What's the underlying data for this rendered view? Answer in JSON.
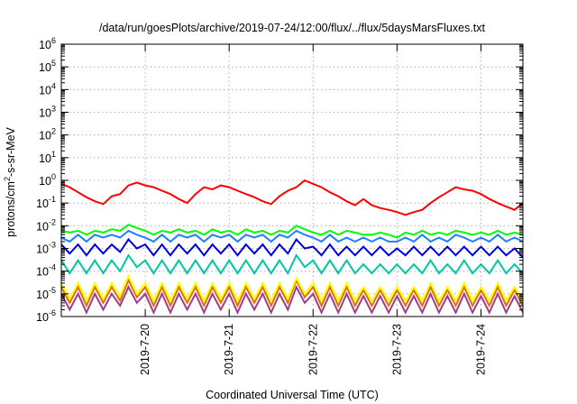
{
  "chart_data": {
    "type": "line",
    "title": "/data/run/goesPlots/archive/2019-07-24/12:00/flux/../flux/5daysMarsFluxes.txt",
    "xlabel": "Coordinated Universal Time (UTC)",
    "ylabel": {
      "prefix": "protons/cm",
      "sup": "2",
      "suffix": "-s-sr-MeV"
    },
    "yscale": "log",
    "ylim": [
      1e-06,
      1000000.0
    ],
    "xlim": [
      0,
      5.5
    ],
    "grid": true,
    "y_ticks": [
      {
        "base": "10",
        "exp": "-6",
        "value": 1e-06
      },
      {
        "base": "10",
        "exp": "-5",
        "value": 1e-05
      },
      {
        "base": "10",
        "exp": "-4",
        "value": 0.0001
      },
      {
        "base": "10",
        "exp": "-3",
        "value": 0.001
      },
      {
        "base": "10",
        "exp": "-2",
        "value": 0.01
      },
      {
        "base": "10",
        "exp": "-1",
        "value": 0.1
      },
      {
        "base": "10",
        "exp": "0",
        "value": 1
      },
      {
        "base": "10",
        "exp": "1",
        "value": 10.0
      },
      {
        "base": "10",
        "exp": "2",
        "value": 100.0
      },
      {
        "base": "10",
        "exp": "3",
        "value": 1000.0
      },
      {
        "base": "10",
        "exp": "4",
        "value": 10000.0
      },
      {
        "base": "10",
        "exp": "5",
        "value": 100000.0
      },
      {
        "base": "10",
        "exp": "6",
        "value": 1000000.0
      }
    ],
    "x_ticks": [
      {
        "label": "2019-7-20",
        "value": 1
      },
      {
        "label": "2019-7-21",
        "value": 2
      },
      {
        "label": "2019-7-22",
        "value": 3
      },
      {
        "label": "2019-7-23",
        "value": 4
      },
      {
        "label": "2019-7-24",
        "value": 5
      }
    ],
    "series": [
      {
        "color": "#ff0000",
        "x": [
          0,
          0.1,
          0.2,
          0.3,
          0.4,
          0.5,
          0.6,
          0.7,
          0.8,
          0.9,
          1.0,
          1.1,
          1.2,
          1.3,
          1.4,
          1.5,
          1.6,
          1.7,
          1.8,
          1.9,
          2.0,
          2.1,
          2.2,
          2.3,
          2.4,
          2.5,
          2.6,
          2.7,
          2.8,
          2.9,
          3.0,
          3.1,
          3.2,
          3.3,
          3.4,
          3.5,
          3.6,
          3.7,
          3.8,
          3.9,
          4.0,
          4.1,
          4.2,
          4.3,
          4.4,
          4.5,
          4.6,
          4.7,
          4.8,
          4.9,
          5.0,
          5.1,
          5.2,
          5.3,
          5.4,
          5.5
        ],
        "values": [
          0.7,
          0.5,
          0.3,
          0.18,
          0.12,
          0.09,
          0.2,
          0.25,
          0.6,
          0.8,
          0.6,
          0.5,
          0.35,
          0.25,
          0.15,
          0.1,
          0.25,
          0.5,
          0.4,
          0.6,
          0.5,
          0.35,
          0.25,
          0.18,
          0.12,
          0.09,
          0.2,
          0.35,
          0.5,
          1.0,
          0.7,
          0.5,
          0.3,
          0.2,
          0.12,
          0.08,
          0.15,
          0.08,
          0.06,
          0.05,
          0.04,
          0.03,
          0.04,
          0.05,
          0.1,
          0.18,
          0.3,
          0.5,
          0.4,
          0.35,
          0.25,
          0.15,
          0.1,
          0.07,
          0.05,
          0.1
        ]
      },
      {
        "color": "#00ff00",
        "x": [
          0,
          0.1,
          0.2,
          0.3,
          0.4,
          0.5,
          0.6,
          0.7,
          0.8,
          0.9,
          1.0,
          1.1,
          1.2,
          1.3,
          1.4,
          1.5,
          1.6,
          1.7,
          1.8,
          1.9,
          2.0,
          2.1,
          2.2,
          2.3,
          2.4,
          2.5,
          2.6,
          2.7,
          2.8,
          2.9,
          3.0,
          3.1,
          3.2,
          3.3,
          3.4,
          3.5,
          3.6,
          3.7,
          3.8,
          3.9,
          4.0,
          4.1,
          4.2,
          4.3,
          4.4,
          4.5,
          4.6,
          4.7,
          4.8,
          4.9,
          5.0,
          5.1,
          5.2,
          5.3,
          5.4,
          5.5
        ],
        "values": [
          0.006,
          0.005,
          0.006,
          0.004,
          0.006,
          0.005,
          0.007,
          0.006,
          0.011,
          0.008,
          0.006,
          0.004,
          0.006,
          0.005,
          0.007,
          0.005,
          0.006,
          0.004,
          0.007,
          0.005,
          0.006,
          0.004,
          0.007,
          0.005,
          0.006,
          0.004,
          0.006,
          0.005,
          0.01,
          0.007,
          0.005,
          0.004,
          0.006,
          0.004,
          0.006,
          0.005,
          0.004,
          0.004,
          0.005,
          0.004,
          0.003,
          0.005,
          0.004,
          0.006,
          0.004,
          0.005,
          0.004,
          0.006,
          0.005,
          0.004,
          0.005,
          0.004,
          0.006,
          0.004,
          0.005,
          0.004
        ]
      },
      {
        "color": "#2080ff",
        "x": [
          0,
          0.1,
          0.2,
          0.3,
          0.4,
          0.5,
          0.6,
          0.7,
          0.8,
          0.9,
          1.0,
          1.1,
          1.2,
          1.3,
          1.4,
          1.5,
          1.6,
          1.7,
          1.8,
          1.9,
          2.0,
          2.1,
          2.2,
          2.3,
          2.4,
          2.5,
          2.6,
          2.7,
          2.8,
          2.9,
          3.0,
          3.1,
          3.2,
          3.3,
          3.4,
          3.5,
          3.6,
          3.7,
          3.8,
          3.9,
          4.0,
          4.1,
          4.2,
          4.3,
          4.4,
          4.5,
          4.6,
          4.7,
          4.8,
          4.9,
          5.0,
          5.1,
          5.2,
          5.3,
          5.4,
          5.5
        ],
        "values": [
          0.003,
          0.002,
          0.004,
          0.002,
          0.004,
          0.003,
          0.004,
          0.003,
          0.006,
          0.004,
          0.003,
          0.002,
          0.004,
          0.002,
          0.004,
          0.003,
          0.004,
          0.002,
          0.004,
          0.003,
          0.004,
          0.002,
          0.004,
          0.003,
          0.004,
          0.002,
          0.004,
          0.003,
          0.006,
          0.004,
          0.003,
          0.002,
          0.004,
          0.002,
          0.003,
          0.002,
          0.003,
          0.002,
          0.003,
          0.002,
          0.002,
          0.003,
          0.002,
          0.004,
          0.002,
          0.003,
          0.002,
          0.004,
          0.003,
          0.002,
          0.003,
          0.002,
          0.004,
          0.002,
          0.003,
          0.002
        ]
      },
      {
        "color": "#0000dd",
        "x": [
          0,
          0.1,
          0.2,
          0.3,
          0.4,
          0.5,
          0.6,
          0.7,
          0.8,
          0.9,
          1.0,
          1.1,
          1.2,
          1.3,
          1.4,
          1.5,
          1.6,
          1.7,
          1.8,
          1.9,
          2.0,
          2.1,
          2.2,
          2.3,
          2.4,
          2.5,
          2.6,
          2.7,
          2.8,
          2.9,
          3.0,
          3.1,
          3.2,
          3.3,
          3.4,
          3.5,
          3.6,
          3.7,
          3.8,
          3.9,
          4.0,
          4.1,
          4.2,
          4.3,
          4.4,
          4.5,
          4.6,
          4.7,
          4.8,
          4.9,
          5.0,
          5.1,
          5.2,
          5.3,
          5.4,
          5.5
        ],
        "values": [
          0.0015,
          0.0006,
          0.0015,
          0.0005,
          0.0015,
          0.0006,
          0.0015,
          0.0007,
          0.0025,
          0.001,
          0.0015,
          0.0005,
          0.0015,
          0.0005,
          0.0015,
          0.0006,
          0.0015,
          0.0005,
          0.0015,
          0.0006,
          0.0015,
          0.0005,
          0.0015,
          0.0006,
          0.0015,
          0.0005,
          0.0015,
          0.0006,
          0.0025,
          0.001,
          0.0012,
          0.0005,
          0.0015,
          0.0005,
          0.0012,
          0.0005,
          0.0012,
          0.0005,
          0.0012,
          0.0005,
          0.001,
          0.0005,
          0.0012,
          0.0005,
          0.0012,
          0.0005,
          0.0012,
          0.0005,
          0.0012,
          0.0005,
          0.0012,
          0.0005,
          0.0012,
          0.0005,
          0.001,
          0.0004
        ]
      },
      {
        "color": "#00c8a0",
        "x": [
          0,
          0.1,
          0.2,
          0.3,
          0.4,
          0.5,
          0.6,
          0.7,
          0.8,
          0.9,
          1.0,
          1.1,
          1.2,
          1.3,
          1.4,
          1.5,
          1.6,
          1.7,
          1.8,
          1.9,
          2.0,
          2.1,
          2.2,
          2.3,
          2.4,
          2.5,
          2.6,
          2.7,
          2.8,
          2.9,
          3.0,
          3.1,
          3.2,
          3.3,
          3.4,
          3.5,
          3.6,
          3.7,
          3.8,
          3.9,
          4.0,
          4.1,
          4.2,
          4.3,
          4.4,
          4.5,
          4.6,
          4.7,
          4.8,
          4.9,
          5.0,
          5.1,
          5.2,
          5.3,
          5.4,
          5.5
        ],
        "values": [
          0.0003,
          8e-05,
          0.0003,
          8e-05,
          0.0003,
          8e-05,
          0.0003,
          0.0001,
          0.0005,
          0.00015,
          0.0003,
          8e-05,
          0.0003,
          8e-05,
          0.0003,
          8e-05,
          0.0003,
          8e-05,
          0.0003,
          8e-05,
          0.0003,
          8e-05,
          0.0003,
          8e-05,
          0.0003,
          8e-05,
          0.0003,
          8e-05,
          0.0005,
          0.00015,
          0.0003,
          8e-05,
          0.0003,
          8e-05,
          0.0003,
          8e-05,
          0.0002,
          8e-05,
          0.0002,
          8e-05,
          0.0002,
          8e-05,
          0.0002,
          8e-05,
          0.0003,
          8e-05,
          0.0002,
          8e-05,
          0.0003,
          8e-05,
          0.0002,
          8e-05,
          0.0003,
          8e-05,
          0.0002,
          8e-05
        ]
      },
      {
        "color": "#ffff00",
        "x": [
          0,
          0.1,
          0.2,
          0.3,
          0.4,
          0.5,
          0.6,
          0.7,
          0.8,
          0.9,
          1.0,
          1.1,
          1.2,
          1.3,
          1.4,
          1.5,
          1.6,
          1.7,
          1.8,
          1.9,
          2.0,
          2.1,
          2.2,
          2.3,
          2.4,
          2.5,
          2.6,
          2.7,
          2.8,
          2.9,
          3.0,
          3.1,
          3.2,
          3.3,
          3.4,
          3.5,
          3.6,
          3.7,
          3.8,
          3.9,
          4.0,
          4.1,
          4.2,
          4.3,
          4.4,
          4.5,
          4.6,
          4.7,
          4.8,
          4.9,
          5.0,
          5.1,
          5.2,
          5.3,
          5.4,
          5.5
        ],
        "values": [
          3e-05,
          6e-06,
          3e-05,
          5e-06,
          3e-05,
          6e-06,
          3e-05,
          8e-06,
          6e-05,
          1e-05,
          3e-05,
          5e-06,
          3e-05,
          5e-06,
          3e-05,
          6e-06,
          3e-05,
          5e-06,
          3e-05,
          6e-06,
          3e-05,
          5e-06,
          3e-05,
          6e-06,
          3e-05,
          5e-06,
          3e-05,
          6e-06,
          5e-05,
          1e-05,
          3e-05,
          5e-06,
          3e-05,
          5e-06,
          3e-05,
          5e-06,
          2e-05,
          5e-06,
          2e-05,
          5e-06,
          2e-05,
          5e-06,
          2e-05,
          5e-06,
          3e-05,
          5e-06,
          2e-05,
          5e-06,
          3e-05,
          5e-06,
          2e-05,
          5e-06,
          3e-05,
          5e-06,
          2e-05,
          5e-06
        ]
      },
      {
        "color": "#e07000",
        "x": [
          0,
          0.1,
          0.2,
          0.3,
          0.4,
          0.5,
          0.6,
          0.7,
          0.8,
          0.9,
          1.0,
          1.1,
          1.2,
          1.3,
          1.4,
          1.5,
          1.6,
          1.7,
          1.8,
          1.9,
          2.0,
          2.1,
          2.2,
          2.3,
          2.4,
          2.5,
          2.6,
          2.7,
          2.8,
          2.9,
          3.0,
          3.1,
          3.2,
          3.3,
          3.4,
          3.5,
          3.6,
          3.7,
          3.8,
          3.9,
          4.0,
          4.1,
          4.2,
          4.3,
          4.4,
          4.5,
          4.6,
          4.7,
          4.8,
          4.9,
          5.0,
          5.1,
          5.2,
          5.3,
          5.4,
          5.5
        ],
        "values": [
          2e-05,
          4e-06,
          2e-05,
          3e-06,
          2e-05,
          4e-06,
          2e-05,
          5e-06,
          4e-05,
          7e-06,
          2e-05,
          3e-06,
          2e-05,
          3e-06,
          2e-05,
          4e-06,
          2e-05,
          3e-06,
          2e-05,
          4e-06,
          2e-05,
          3e-06,
          2e-05,
          4e-06,
          2e-05,
          3e-06,
          2e-05,
          4e-06,
          4e-05,
          7e-06,
          2e-05,
          3e-06,
          2e-05,
          3e-06,
          2e-05,
          3e-06,
          1.5e-05,
          3e-06,
          1.5e-05,
          3e-06,
          1.5e-05,
          3e-06,
          1.5e-05,
          3e-06,
          2e-05,
          3e-06,
          1.5e-05,
          3e-06,
          2e-05,
          3e-06,
          1.5e-05,
          3e-06,
          2e-05,
          3e-06,
          1.5e-05,
          3e-06
        ]
      },
      {
        "color": "#a03c8c",
        "x": [
          0,
          0.1,
          0.2,
          0.3,
          0.4,
          0.5,
          0.6,
          0.7,
          0.8,
          0.9,
          1.0,
          1.1,
          1.2,
          1.3,
          1.4,
          1.5,
          1.6,
          1.7,
          1.8,
          1.9,
          2.0,
          2.1,
          2.2,
          2.3,
          2.4,
          2.5,
          2.6,
          2.7,
          2.8,
          2.9,
          3.0,
          3.1,
          3.2,
          3.3,
          3.4,
          3.5,
          3.6,
          3.7,
          3.8,
          3.9,
          4.0,
          4.1,
          4.2,
          4.3,
          4.4,
          4.5,
          4.6,
          4.7,
          4.8,
          4.9,
          5.0,
          5.1,
          5.2,
          5.3,
          5.4,
          5.5
        ],
        "values": [
          1e-05,
          2e-06,
          1e-05,
          1.5e-06,
          1e-05,
          2e-06,
          1e-05,
          3e-06,
          2e-05,
          4e-06,
          1e-05,
          1.5e-06,
          1e-05,
          1.5e-06,
          1e-05,
          2e-06,
          1e-05,
          1.5e-06,
          1e-05,
          2e-06,
          1e-05,
          1.5e-06,
          1e-05,
          2e-06,
          1e-05,
          1.5e-06,
          1e-05,
          2e-06,
          2e-05,
          4e-06,
          1e-05,
          1.5e-06,
          1e-05,
          1.5e-06,
          1e-05,
          1.5e-06,
          8e-06,
          1.5e-06,
          8e-06,
          1.5e-06,
          8e-06,
          1.5e-06,
          8e-06,
          1.5e-06,
          1e-05,
          1.5e-06,
          8e-06,
          1.5e-06,
          1e-05,
          1.5e-06,
          8e-06,
          1.5e-06,
          1e-05,
          1.5e-06,
          8e-06,
          1.5e-06
        ]
      }
    ]
  }
}
